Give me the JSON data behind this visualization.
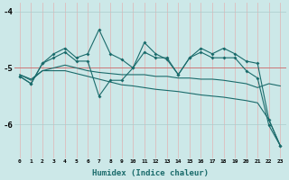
{
  "xlabel": "Humidex (Indice chaleur)",
  "x": [
    0,
    1,
    2,
    3,
    4,
    5,
    6,
    7,
    8,
    9,
    10,
    11,
    12,
    13,
    14,
    15,
    16,
    17,
    18,
    19,
    20,
    21,
    22,
    23
  ],
  "line_jagged1": [
    -5.15,
    -5.28,
    -4.92,
    -4.75,
    -4.65,
    -4.82,
    -4.75,
    -4.32,
    -4.75,
    -4.85,
    -5.0,
    -4.55,
    -4.75,
    -4.85,
    -5.12,
    -4.82,
    -4.65,
    -4.75,
    -4.65,
    -4.75,
    -4.88,
    -4.92,
    -5.92,
    -6.38
  ],
  "line_jagged2": [
    -5.15,
    -5.28,
    -4.92,
    -4.82,
    -4.72,
    -4.88,
    -4.88,
    -5.5,
    -5.22,
    -5.22,
    -5.0,
    -4.72,
    -4.82,
    -4.82,
    -5.12,
    -4.82,
    -4.72,
    -4.82,
    -4.82,
    -4.82,
    -5.05,
    -5.18,
    -6.02,
    -6.38
  ],
  "line_smooth_diagonal": [
    -5.12,
    -5.2,
    -5.05,
    -5.05,
    -5.05,
    -5.1,
    -5.15,
    -5.2,
    -5.25,
    -5.3,
    -5.32,
    -5.35,
    -5.38,
    -5.4,
    -5.42,
    -5.45,
    -5.48,
    -5.5,
    -5.52,
    -5.55,
    -5.58,
    -5.62,
    -5.92,
    -6.38
  ],
  "line_flat": [
    -5.12,
    -5.22,
    -5.05,
    -5.0,
    -4.95,
    -5.0,
    -5.05,
    -5.08,
    -5.1,
    -5.12,
    -5.12,
    -5.12,
    -5.15,
    -5.15,
    -5.18,
    -5.18,
    -5.2,
    -5.2,
    -5.22,
    -5.25,
    -5.28,
    -5.35,
    -5.28,
    -5.32
  ],
  "bg_color": "#cce8e8",
  "line_color": "#1a6b6b",
  "hline_color": "#cc7777",
  "hline_y": -5.0,
  "ylim": [
    -6.6,
    -3.85
  ],
  "yticks": [
    -6,
    -5,
    -4
  ],
  "grid_color_major": "#aacccc",
  "grid_color_minor": "#ddeeed",
  "marker": "D",
  "markersize": 2.0,
  "linewidth": 0.8
}
